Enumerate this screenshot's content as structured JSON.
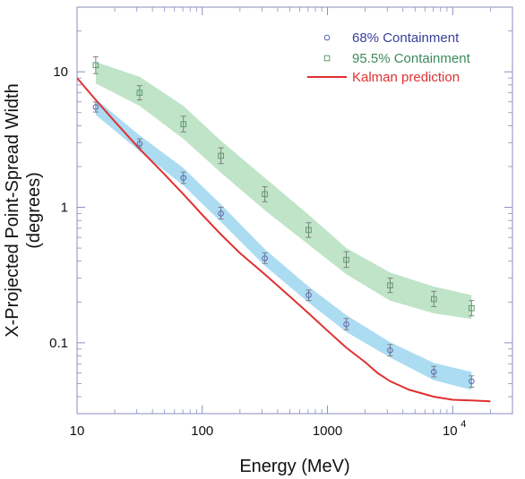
{
  "chart_data": {
    "type": "line",
    "xlabel": "Energy (MeV)",
    "ylabel_line1": "X-Projected Point-Spread Width",
    "ylabel_line2": "(degrees)",
    "xscale": "log",
    "yscale": "log",
    "xlim": [
      10,
      30000
    ],
    "ylim": [
      0.03,
      30
    ],
    "grid": false,
    "legend_position": "top-right",
    "x_tick_labels": [
      "10",
      "100",
      "1000",
      "10",
      "4"
    ],
    "y_tick_labels": [
      "0.1",
      "1",
      "10"
    ],
    "series": [
      {
        "name": "68% Containment",
        "marker": "circle",
        "color": "#5b64b8",
        "x": [
          14.1,
          31.6,
          70.7,
          141,
          316,
          707,
          1414,
          3162,
          7071,
          14142
        ],
        "y": [
          5.5,
          2.95,
          1.65,
          0.9,
          0.42,
          0.225,
          0.137,
          0.088,
          0.061,
          0.052
        ],
        "yerr_low": [
          5.05,
          2.75,
          1.5,
          0.82,
          0.385,
          0.205,
          0.125,
          0.08,
          0.056,
          0.047
        ],
        "yerr_high": [
          6.0,
          3.2,
          1.82,
          1.0,
          0.46,
          0.245,
          0.151,
          0.097,
          0.067,
          0.057
        ]
      },
      {
        "name": "95.5% Containment",
        "marker": "square",
        "color": "#5a9c6b",
        "x": [
          14.1,
          31.6,
          70.7,
          141,
          316,
          707,
          1414,
          3162,
          7071,
          14142
        ],
        "y": [
          11.2,
          7.0,
          4.1,
          2.4,
          1.25,
          0.68,
          0.41,
          0.265,
          0.21,
          0.18
        ],
        "yerr_low": [
          9.7,
          6.2,
          3.6,
          2.1,
          1.1,
          0.6,
          0.36,
          0.235,
          0.185,
          0.158
        ],
        "yerr_high": [
          12.9,
          7.9,
          4.7,
          2.75,
          1.42,
          0.77,
          0.47,
          0.3,
          0.24,
          0.205
        ]
      },
      {
        "name": "Kalman prediction",
        "marker": "none",
        "color": "#e03030",
        "x": [
          10,
          14.1,
          20,
          31.6,
          50,
          70.7,
          100,
          141,
          200,
          316,
          500,
          707,
          1000,
          1414,
          2000,
          2500,
          3162,
          4500,
          7071,
          10000,
          14142,
          20000
        ],
        "y": [
          9.0,
          6.2,
          4.3,
          2.7,
          1.75,
          1.25,
          0.88,
          0.63,
          0.46,
          0.32,
          0.22,
          0.165,
          0.123,
          0.092,
          0.072,
          0.06,
          0.052,
          0.045,
          0.04,
          0.038,
          0.0375,
          0.037
        ]
      }
    ],
    "bands": [
      {
        "series": "68% Containment",
        "color": "#abdcf2",
        "x": [
          14.1,
          31.6,
          70.7,
          141,
          316,
          707,
          1414,
          3162,
          7071,
          14142
        ],
        "low": [
          4.8,
          2.6,
          1.45,
          0.78,
          0.37,
          0.198,
          0.12,
          0.078,
          0.053,
          0.045
        ],
        "high": [
          6.3,
          3.4,
          1.95,
          1.05,
          0.49,
          0.26,
          0.16,
          0.101,
          0.071,
          0.061
        ]
      },
      {
        "series": "95.5% Containment",
        "color": "#bfe4c8",
        "x": [
          14.1,
          31.6,
          70.7,
          141,
          316,
          707,
          1414,
          3162,
          7071,
          14142
        ],
        "low": [
          8.2,
          5.6,
          3.2,
          1.8,
          0.95,
          0.53,
          0.32,
          0.205,
          0.165,
          0.15
        ],
        "high": [
          11.8,
          9.2,
          5.6,
          3.1,
          1.65,
          0.88,
          0.5,
          0.33,
          0.26,
          0.225
        ]
      }
    ]
  }
}
